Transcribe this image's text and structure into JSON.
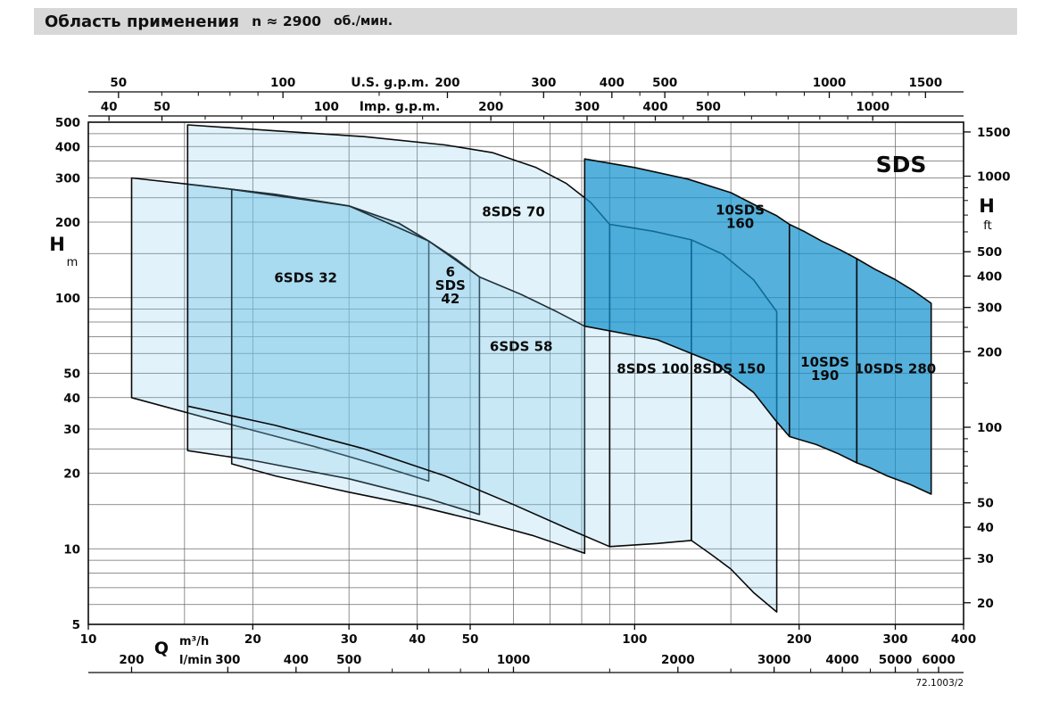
{
  "header": {
    "title": "Область применения",
    "speed": "n ≈ 2900",
    "units": "об./мин."
  },
  "brand": "SDS",
  "footer": {
    "code": "72.1003/2"
  },
  "chart_data": {
    "type": "area",
    "title": "Область применения",
    "subtitle": "n ≈ 2900 об./мин.",
    "log_log": true,
    "plot": {
      "x0": 99,
      "y0": 137,
      "x1": 1080,
      "y1": 700
    },
    "q_range": [
      10,
      400
    ],
    "h_range": [
      5,
      500
    ],
    "grid": {
      "q": [
        15,
        20,
        30,
        40,
        50,
        60,
        70,
        80,
        90,
        100,
        150,
        200,
        300
      ],
      "h": [
        6,
        7,
        8,
        9,
        10,
        15,
        20,
        25,
        30,
        40,
        50,
        60,
        70,
        80,
        90,
        100,
        150,
        200,
        250,
        300,
        350,
        400,
        450
      ]
    },
    "axes": {
      "us": {
        "label": "U.S. g.p.m.",
        "factor": 4.4029,
        "ticks": [
          50,
          100,
          200,
          300,
          400,
          500,
          1000,
          1500
        ],
        "minor": [
          60,
          70,
          80,
          90,
          150,
          250,
          350,
          450,
          600,
          700,
          800,
          900,
          1100,
          1200,
          1300,
          1400
        ]
      },
      "imp": {
        "label": "Imp. g.p.m.",
        "factor": 3.6662,
        "ticks": [
          40,
          50,
          100,
          200,
          300,
          400,
          500,
          1000
        ],
        "minor": [
          60,
          70,
          80,
          90,
          150,
          250,
          350,
          450,
          600,
          700,
          800,
          900
        ]
      },
      "hm": {
        "label": "H",
        "unit": "m",
        "ticks": [
          500,
          400,
          300,
          200,
          100,
          50,
          40,
          30,
          20,
          10,
          5
        ]
      },
      "hft": {
        "label": "H",
        "unit": "ft",
        "factor": 3.2808,
        "ticks": [
          1500,
          1000,
          500,
          400,
          300,
          200,
          100,
          50,
          40,
          30,
          20
        ],
        "minor": [
          60,
          70,
          80,
          90,
          150,
          250,
          600,
          700,
          800,
          900
        ]
      },
      "q": {
        "label": "Q",
        "unit": "m³/h",
        "ticks": [
          10,
          20,
          30,
          40,
          50,
          100,
          200,
          300,
          400
        ]
      },
      "lmin": {
        "label": "l/min",
        "factor": 16.6667,
        "ticks": [
          200,
          300,
          400,
          500,
          1000,
          2000,
          3000,
          4000,
          5000,
          6000
        ],
        "minor": [
          600,
          700,
          800,
          900,
          1500,
          2500,
          3500,
          4500,
          5500
        ]
      }
    },
    "colors": {
      "light_fill": "rgba(120,195,230,0.22)",
      "dark_fill": "rgba(20,145,205,0.72)",
      "line": "#0a0a0a",
      "grid": "#6b6b6b"
    },
    "series": [
      {
        "name": "6SDS 32",
        "label_lines": [
          "6SDS 32"
        ],
        "label_at": [
          25,
          120
        ],
        "shade": "light",
        "poly": [
          [
            12,
            300
          ],
          [
            16,
            280
          ],
          [
            22,
            258
          ],
          [
            30,
            232
          ],
          [
            37,
            198
          ],
          [
            42,
            168
          ],
          [
            42,
            18.6
          ],
          [
            34,
            21.5
          ],
          [
            26,
            25.5
          ],
          [
            18,
            31.5
          ],
          [
            12,
            40
          ]
        ]
      },
      {
        "name": "6 SDS 42",
        "label_lines": [
          "6",
          "SDS",
          "42"
        ],
        "label_at": [
          46,
          112
        ],
        "shade": "light",
        "poly": [
          [
            15.2,
            283
          ],
          [
            22,
            258
          ],
          [
            30,
            232
          ],
          [
            37,
            198
          ],
          [
            42,
            168
          ],
          [
            47,
            143
          ],
          [
            52,
            121
          ],
          [
            52,
            13.7
          ],
          [
            42,
            15.8
          ],
          [
            30,
            19
          ],
          [
            20,
            22.5
          ],
          [
            15.2,
            24.6
          ]
        ]
      },
      {
        "name": "6SDS 58",
        "label_lines": [
          "6SDS 58"
        ],
        "label_at": [
          62,
          64
        ],
        "shade": "light",
        "poly": [
          [
            18.3,
            270
          ],
          [
            30,
            232
          ],
          [
            42,
            168
          ],
          [
            52,
            121
          ],
          [
            62,
            103
          ],
          [
            72,
            88
          ],
          [
            81,
            77
          ],
          [
            81,
            9.6
          ],
          [
            65,
            11.3
          ],
          [
            52,
            12.9
          ],
          [
            40,
            14.8
          ],
          [
            30,
            16.8
          ],
          [
            22,
            19.5
          ],
          [
            18.3,
            21.8
          ]
        ]
      },
      {
        "name": "8SDS 70",
        "label_lines": [
          "8SDS 70"
        ],
        "label_at": [
          60,
          220
        ],
        "shade": "light",
        "poly": [
          [
            15.2,
            488
          ],
          [
            22,
            462
          ],
          [
            32,
            438
          ],
          [
            45,
            406
          ],
          [
            55,
            378
          ],
          [
            66,
            330
          ],
          [
            75,
            285
          ],
          [
            83,
            240
          ],
          [
            90,
            196
          ],
          [
            90,
            10.2
          ],
          [
            75,
            12.1
          ],
          [
            60,
            15
          ],
          [
            45,
            19.5
          ],
          [
            32,
            25
          ],
          [
            22,
            31
          ],
          [
            15.2,
            37
          ]
        ]
      },
      {
        "name": "8SDS 100",
        "label_lines": [
          "8SDS 100"
        ],
        "label_at": [
          108,
          52
        ],
        "shade": "light",
        "poly": [
          [
            90,
            196
          ],
          [
            108,
            184
          ],
          [
            127,
            170
          ],
          [
            127,
            10.8
          ],
          [
            110,
            10.5
          ],
          [
            90,
            10.2
          ]
        ]
      },
      {
        "name": "8SDS 150",
        "label_lines": [
          "8SDS 150"
        ],
        "label_at": [
          149,
          52
        ],
        "shade": "light",
        "poly": [
          [
            127,
            170
          ],
          [
            145,
            149
          ],
          [
            165,
            118
          ],
          [
            182,
            88
          ],
          [
            182,
            5.6
          ],
          [
            165,
            6.7
          ],
          [
            150,
            8.3
          ],
          [
            138,
            9.5
          ],
          [
            127,
            10.8
          ]
        ]
      },
      {
        "name": "10SDS 160",
        "label_lines": [
          "10SDS",
          "160"
        ],
        "label_at": [
          156,
          210
        ],
        "shade": "dark",
        "poly": [
          [
            81,
            357
          ],
          [
            100,
            330
          ],
          [
            125,
            297
          ],
          [
            150,
            262
          ],
          [
            170,
            228
          ],
          [
            182,
            212
          ],
          [
            192,
            196
          ],
          [
            192,
            28
          ],
          [
            180,
            33
          ],
          [
            165,
            42
          ],
          [
            140,
            55
          ],
          [
            110,
            68
          ],
          [
            81,
            77
          ]
        ]
      },
      {
        "name": "10SDS 190",
        "label_lines": [
          "10SDS",
          "190"
        ],
        "label_at": [
          223,
          52
        ],
        "shade": "dark",
        "poly": [
          [
            192,
            196
          ],
          [
            205,
            183
          ],
          [
            220,
            168
          ],
          [
            238,
            155
          ],
          [
            255,
            143
          ],
          [
            255,
            22
          ],
          [
            235,
            24
          ],
          [
            215,
            26
          ],
          [
            192,
            28
          ]
        ]
      },
      {
        "name": "10SDS 280",
        "label_lines": [
          "10SDS 280"
        ],
        "label_at": [
          300,
          52
        ],
        "shade": "dark",
        "poly": [
          [
            255,
            143
          ],
          [
            275,
            130
          ],
          [
            300,
            118
          ],
          [
            325,
            106
          ],
          [
            349,
            95
          ],
          [
            349,
            16.5
          ],
          [
            320,
            18
          ],
          [
            290,
            19.5
          ],
          [
            270,
            21
          ],
          [
            255,
            22
          ]
        ]
      }
    ]
  }
}
